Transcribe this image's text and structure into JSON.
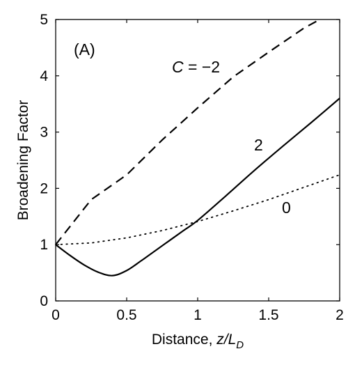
{
  "chart_data": {
    "type": "line",
    "panel_label": "(A)",
    "xlabel": "Distance, ",
    "xlabel_var": "z/L",
    "xlabel_sub": "D",
    "ylabel": "Broadening Factor",
    "xlim": [
      0,
      2
    ],
    "ylim": [
      0,
      5
    ],
    "xticks": [
      "0",
      "0.5",
      "1",
      "1.5",
      "2"
    ],
    "yticks": [
      "0",
      "1",
      "2",
      "3",
      "4",
      "5"
    ],
    "grid": false,
    "series": [
      {
        "name": "C = −2",
        "label_prefix": "C",
        "label_suffix": " = −2",
        "style": "dashed",
        "x": [
          0,
          0.25,
          0.5,
          0.75,
          1.0,
          1.25,
          1.5,
          1.75,
          1.86
        ],
        "y": [
          1.0,
          1.8,
          2.24,
          2.86,
          3.43,
          3.98,
          4.42,
          4.85,
          5.0
        ]
      },
      {
        "name": "2",
        "label": "2",
        "style": "solid",
        "x": [
          0,
          0.1,
          0.2,
          0.3,
          0.4,
          0.5,
          0.6,
          0.7,
          0.8,
          0.9,
          1.0,
          1.2,
          1.4,
          1.6,
          1.8,
          2.0
        ],
        "y": [
          1.0,
          0.81,
          0.64,
          0.51,
          0.45,
          0.54,
          0.71,
          0.89,
          1.07,
          1.25,
          1.43,
          1.87,
          2.32,
          2.75,
          3.17,
          3.6
        ],
        "smooth": true
      },
      {
        "name": "0",
        "label": "0",
        "style": "dotted",
        "x": [
          0,
          0.25,
          0.5,
          0.75,
          1.0,
          1.25,
          1.5,
          1.75,
          2.0
        ],
        "y": [
          1.0,
          1.03,
          1.12,
          1.25,
          1.41,
          1.6,
          1.8,
          2.02,
          2.24
        ]
      }
    ]
  }
}
